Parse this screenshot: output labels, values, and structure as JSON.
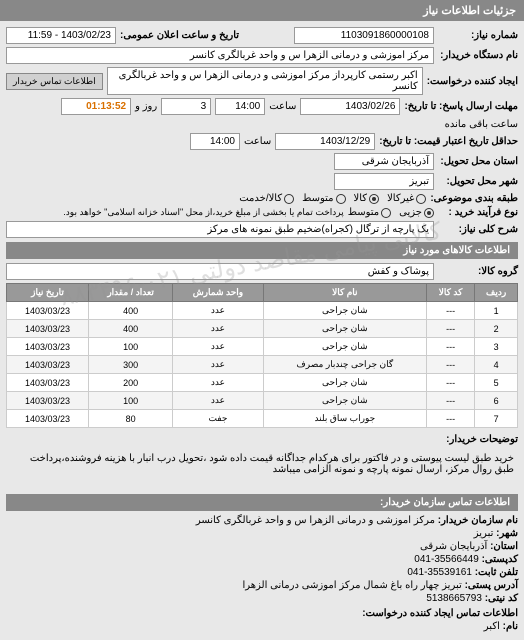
{
  "header": {
    "title": "جزئیات اطلاعات نیاز"
  },
  "request": {
    "number_label": "شماره نیاز:",
    "number": "1103091860000108",
    "announce_label": "تاریخ و ساعت اعلان عمومی:",
    "announce": "1403/02/23 - 11:59",
    "buyer_name_label": "نام دستگاه خریدار:",
    "buyer_name": "مرکز اموزشی و درمانی الزهرا س و واحد غربالگری کانسر",
    "requester_label": "ایجاد کننده درخواست:",
    "requester": "اکبر رستمی کارپرداز مرکز اموزشی و درمانی الزهرا س و واحد غربالگری کانسر",
    "contact_btn": "اطلاعات تماس خریدار",
    "deadline_from_label": "مهلت ارسال پاسخ: تا تاریخ:",
    "deadline_from_date": "1403/02/26",
    "hour_label": "ساعت",
    "deadline_from_hour": "14:00",
    "days_label": "روز و",
    "days": "3",
    "timer": "01:13:52",
    "remain_label": "ساعت باقی مانده",
    "validity_label": "حداقل تاریخ اعتبار قیمت: تا تاریخ:",
    "validity_date": "1403/12/29",
    "validity_hour": "14:00",
    "delivery_province_label": "استان محل تحویل:",
    "delivery_province": "آذربایجان شرقی",
    "delivery_city_label": "شهر محل تحویل:",
    "delivery_city": "تبریز",
    "budget_label": "طبقه بندی موضوعی:",
    "budget_opts": {
      "opt1": "غیرکالا",
      "opt2": "کالا",
      "opt3": "متوسط",
      "opt4": "کالا/خدمت"
    },
    "process_label": "نوع فرآیند خرید :",
    "process_opts": {
      "opt1": "جزیی",
      "opt2": "متوسط"
    },
    "process_note": "پرداخت تمام یا بخشی از مبلغ خرید،از محل \"اسناد خزانه اسلامی\" خواهد بود.",
    "desc_label": "شرح کلی نیاز:",
    "desc": "یک پارچه از ترگال (کجراه)ضخیم طبق نمونه های مرکز"
  },
  "goods": {
    "section_title": "اطلاعات کالاهای مورد نیاز",
    "group_label": "گروه کالا:",
    "group": "پوشاک و کفش",
    "columns": {
      "row": "ردیف",
      "code": "کد کالا",
      "name": "نام کالا",
      "unit": "واحد شمارش",
      "qty": "تعداد / مقدار",
      "date": "تاریخ نیاز"
    },
    "rows": [
      {
        "n": "1",
        "code": "---",
        "name": "شان جراحی",
        "unit": "عدد",
        "qty": "400",
        "date": "1403/03/23"
      },
      {
        "n": "2",
        "code": "---",
        "name": "شان جراحی",
        "unit": "عدد",
        "qty": "400",
        "date": "1403/03/23"
      },
      {
        "n": "3",
        "code": "---",
        "name": "شان جراحی",
        "unit": "عدد",
        "qty": "100",
        "date": "1403/03/23"
      },
      {
        "n": "4",
        "code": "---",
        "name": "گان جراحی چندبار مصرف",
        "unit": "عدد",
        "qty": "300",
        "date": "1403/03/23"
      },
      {
        "n": "5",
        "code": "---",
        "name": "شان جراحی",
        "unit": "عدد",
        "qty": "200",
        "date": "1403/03/23"
      },
      {
        "n": "6",
        "code": "---",
        "name": "شان جراحی",
        "unit": "عدد",
        "qty": "100",
        "date": "1403/03/23"
      },
      {
        "n": "7",
        "code": "---",
        "name": "جوراب ساق بلند",
        "unit": "جفت",
        "qty": "80",
        "date": "1403/03/23"
      }
    ],
    "notes_label": "توضیحات خریدار:",
    "notes": "خرید طبق لیست پیوستی و در فاکتور برای هرکدام جداگانه قیمت داده شود ،تحویل درب انبار با هزینه فروشنده،پرداخت طبق روال مرکز، ارسال نمونه پارچه و نمونه الزامی میباشد"
  },
  "contact": {
    "title": "اطلاعات تماس سازمان خریدار:",
    "org_label": "نام سازمان خریدار:",
    "org": "مرکز اموزشی و درمانی الزهرا س و واحد غربالگری کانسر",
    "city_label": "شهر:",
    "city": "تبریز",
    "province_label": "استان:",
    "province": "آذربایجان شرقی",
    "post_label": "کدپستی:",
    "post": "35566449-041",
    "phone_label": "تلفن ثابت:",
    "phone": "35539161-041",
    "addr_label": "آدرس پستی:",
    "addr": "تبریز چهار راه باغ شمال مرکز اموزشی درمانی الزهرا",
    "fax_label": "کد نیتی:",
    "fax": "5138665793",
    "creator_label": "اطلاعات تماس ایجاد کننده درخواست:",
    "fname_label": "نام:",
    "fname": "اکبر"
  },
  "watermark": "کالایی پیامی مقاصد دولتی\n۰۲۱-۸۸۳۴۹۶"
}
